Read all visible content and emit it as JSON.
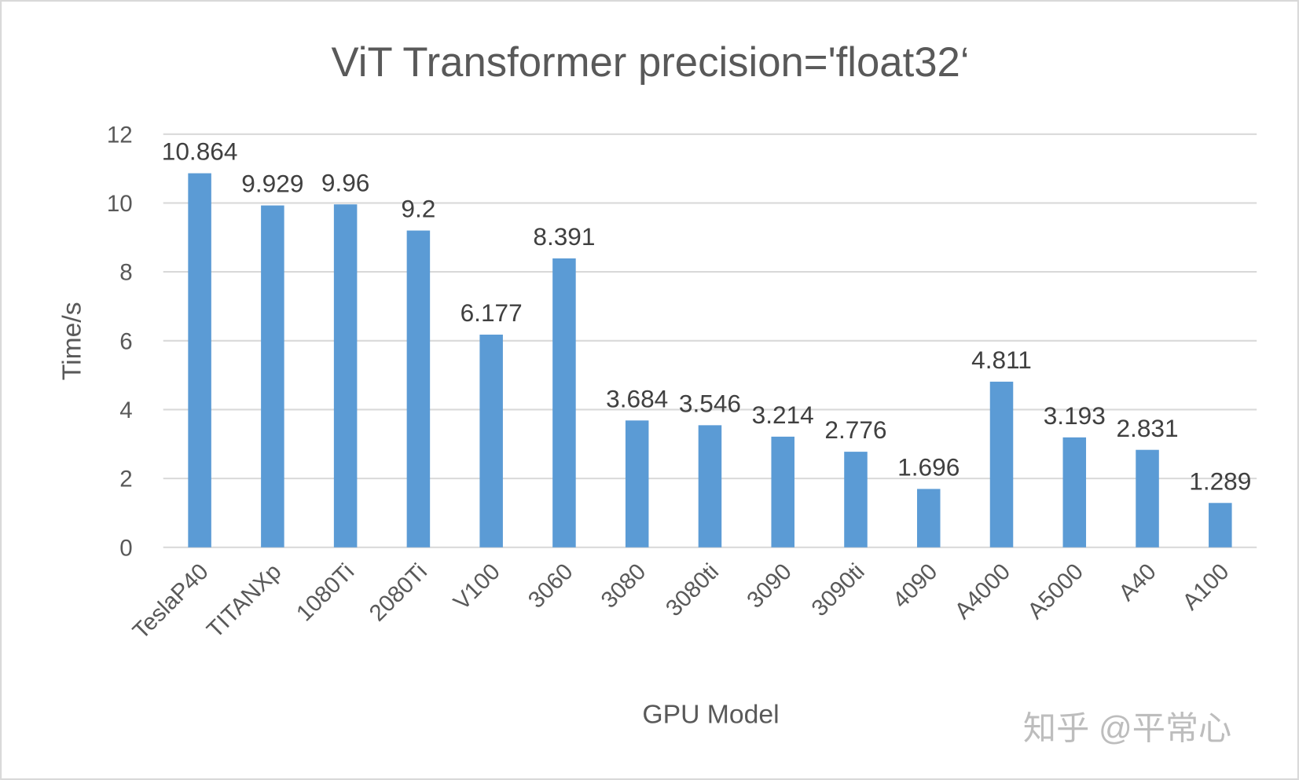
{
  "chart_data": {
    "type": "bar",
    "title": "ViT Transformer precision='float32‘",
    "xlabel": "GPU Model",
    "ylabel": "Time/s",
    "ylim": [
      0,
      12
    ],
    "yticks": [
      0,
      2,
      4,
      6,
      8,
      10,
      12
    ],
    "grid": true,
    "categories": [
      "TeslaP40",
      "TITANXp",
      "1080Ti",
      "2080Ti",
      "V100",
      "3060",
      "3080",
      "3080ti",
      "3090",
      "3090ti",
      "4090",
      "A4000",
      "A5000",
      "A40",
      "A100"
    ],
    "values": [
      10.864,
      9.929,
      9.96,
      9.2,
      6.177,
      8.391,
      3.684,
      3.546,
      3.214,
      2.776,
      1.696,
      4.811,
      3.193,
      2.831,
      1.289
    ],
    "data_labels": [
      "10.864",
      "9.929",
      "9.96",
      "9.2",
      "6.177",
      "8.391",
      "3.684",
      "3.546",
      "3.214",
      "2.776",
      "1.696",
      "4.811",
      "3.193",
      "2.831",
      "1.289"
    ],
    "bar_color": "#5b9bd5",
    "grid_color": "#d9d9d9"
  },
  "watermark": "知乎 @平常心"
}
